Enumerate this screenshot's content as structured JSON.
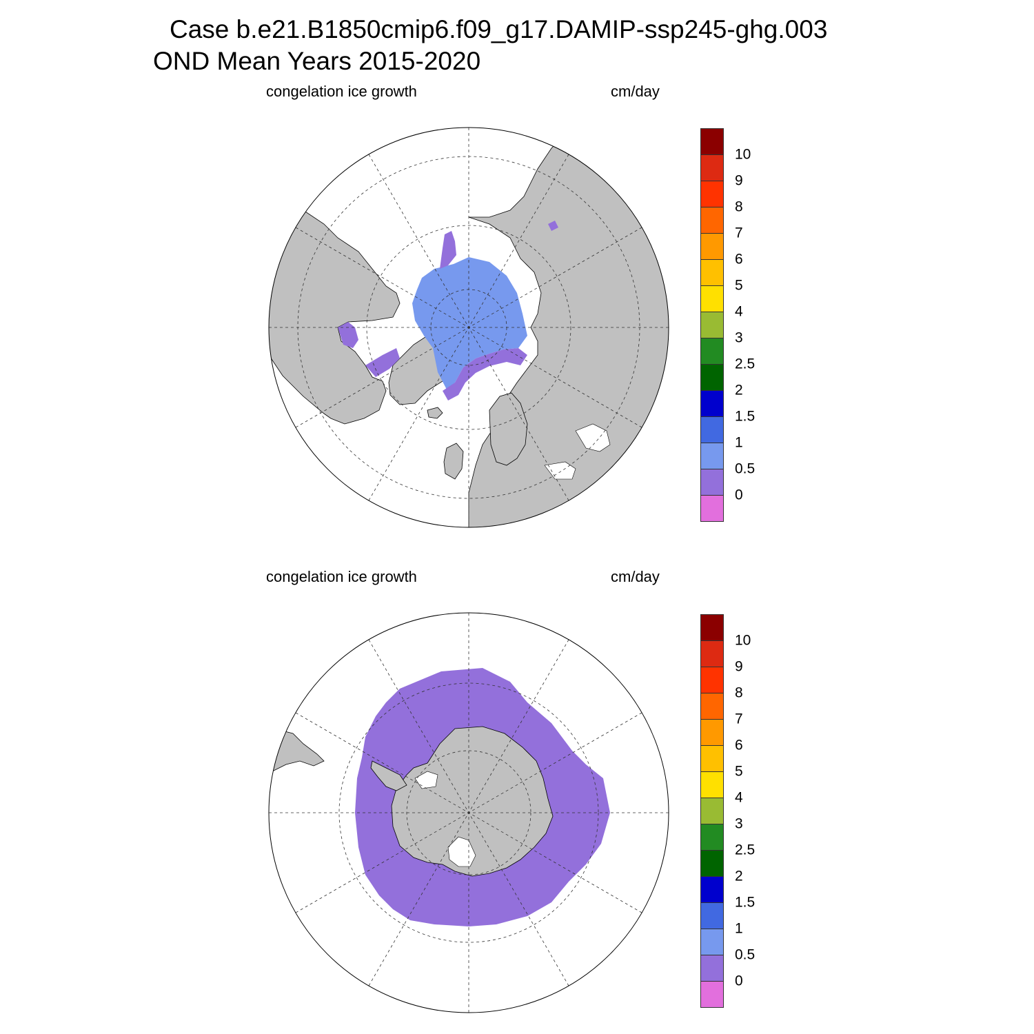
{
  "header": {
    "line1": "Case b.e21.B1850cmip6.f09_g17.DAMIP-ssp245-ghg.003",
    "line2": "OND Mean   Years 2015-2020"
  },
  "panels": [
    {
      "hemisphere": "north",
      "variable": "congelation ice growth",
      "units": "cm/day"
    },
    {
      "hemisphere": "south",
      "variable": "congelation ice growth",
      "units": "cm/day"
    }
  ],
  "colorbar": {
    "labels": [
      "10",
      "9",
      "8",
      "7",
      "6",
      "5",
      "4",
      "3",
      "2.5",
      "2",
      "1.5",
      "1",
      "0.5",
      "0"
    ],
    "colors_top_to_bottom": [
      "#8b0000",
      "#dd2a12",
      "#ff3300",
      "#ff6600",
      "#ff9900",
      "#ffc000",
      "#ffe000",
      "#99bb33",
      "#228b22",
      "#006400",
      "#0000cd",
      "#4169e1",
      "#7799ee",
      "#9370db",
      "#e26fdd"
    ]
  },
  "map_style": {
    "land": "#c0c0c0",
    "ocean": "#ffffff",
    "coast": "#000000",
    "grid": "#333333"
  }
}
